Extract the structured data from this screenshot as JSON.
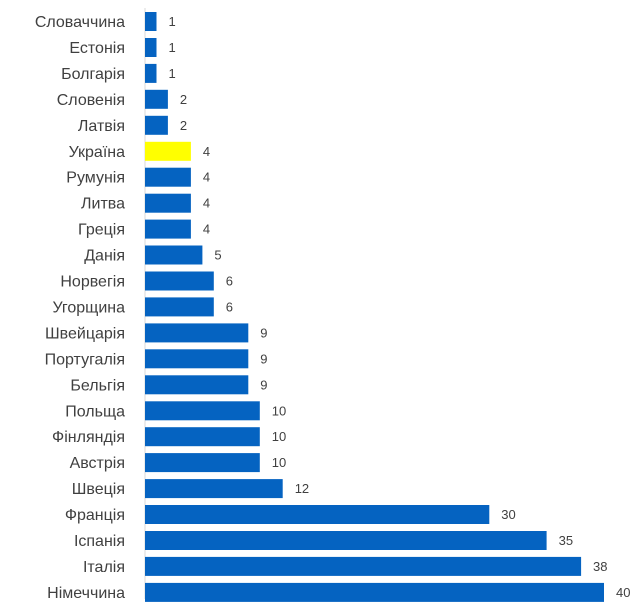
{
  "chart_data": {
    "type": "bar",
    "orientation": "horizontal",
    "title": "",
    "xlabel": "",
    "ylabel": "",
    "categories": [
      "Словаччина",
      "Естонія",
      "Болгарія",
      "Словенія",
      "Латвія",
      "Україна",
      "Румунія",
      "Литва",
      "Греція",
      "Данія",
      "Норвегія",
      "Угорщина",
      "Швейцарія",
      "Португалія",
      "Бельгія",
      "Польща",
      "Фінляндія",
      "Австрія",
      "Швеція",
      "Франція",
      "Іспанія",
      "Італія",
      "Німеччина"
    ],
    "values": [
      1,
      1,
      1,
      2,
      2,
      4,
      4,
      4,
      4,
      5,
      6,
      6,
      9,
      9,
      9,
      10,
      10,
      10,
      12,
      30,
      35,
      38,
      40
    ],
    "xlim": [
      0,
      40
    ],
    "grid": false,
    "legend": "none",
    "bar_color": "#0563C1",
    "highlight_color": "#FFFF00",
    "highlight_category": "Україна"
  }
}
